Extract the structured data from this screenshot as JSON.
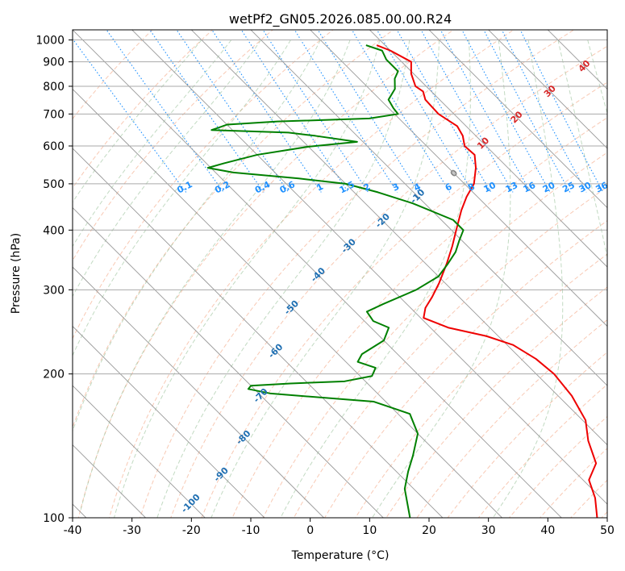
{
  "chart_data": {
    "type": "line",
    "title": "wetPf2_GN05.2026.085.00.00.R24",
    "xlabel": "Temperature (°C)",
    "ylabel": "Pressure (hPa)",
    "xlim": [
      -40,
      50
    ],
    "ylim": [
      1050,
      100
    ],
    "y_scale": "log",
    "skew_factor": 35,
    "grid": true,
    "x_ticks": [
      -40,
      -30,
      -20,
      -10,
      0,
      10,
      20,
      30,
      40,
      50
    ],
    "y_ticks": [
      1000,
      900,
      800,
      700,
      600,
      500,
      400,
      300,
      200,
      100
    ],
    "series": [
      {
        "name": "",
        "role": "temperature",
        "color": "#ee0000",
        "points": [
          [
            975,
            8.6
          ],
          [
            950,
            10.0
          ],
          [
            900,
            11.6
          ],
          [
            850,
            9.6
          ],
          [
            800,
            8.2
          ],
          [
            780,
            8.6
          ],
          [
            750,
            7.6
          ],
          [
            700,
            7.4
          ],
          [
            660,
            8.5
          ],
          [
            630,
            7.8
          ],
          [
            600,
            6.4
          ],
          [
            575,
            6.6
          ],
          [
            540,
            4.6
          ],
          [
            500,
            1.6
          ],
          [
            470,
            -1.8
          ],
          [
            440,
            -5.0
          ],
          [
            400,
            -9.2
          ],
          [
            370,
            -12.6
          ],
          [
            340,
            -16.5
          ],
          [
            310,
            -21.0
          ],
          [
            290,
            -24.5
          ],
          [
            275,
            -27.5
          ],
          [
            262,
            -29.5
          ],
          [
            250,
            -27.0
          ],
          [
            240,
            -22.0
          ],
          [
            230,
            -19.0
          ],
          [
            215,
            -17.5
          ],
          [
            200,
            -17.0
          ],
          [
            180,
            -17.7
          ],
          [
            160,
            -19.5
          ],
          [
            145,
            -22.5
          ],
          [
            130,
            -25.0
          ],
          [
            120,
            -29.0
          ],
          [
            110,
            -31.0
          ],
          [
            100,
            -34.0
          ]
        ]
      },
      {
        "name": "",
        "role": "dewpoint",
        "color": "#008000",
        "points": [
          [
            975,
            6.8
          ],
          [
            950,
            8.6
          ],
          [
            910,
            7.8
          ],
          [
            860,
            7.8
          ],
          [
            830,
            6.0
          ],
          [
            790,
            4.3
          ],
          [
            750,
            1.4
          ],
          [
            720,
            0.8
          ],
          [
            700,
            0.6
          ],
          [
            685,
            -5.0
          ],
          [
            675,
            -21.0
          ],
          [
            665,
            -30.0
          ],
          [
            655,
            -32.0
          ],
          [
            648,
            -33.5
          ],
          [
            640,
            -21.0
          ],
          [
            630,
            -17.0
          ],
          [
            612,
            -11.0
          ],
          [
            598,
            -20.0
          ],
          [
            575,
            -30.0
          ],
          [
            552,
            -37.0
          ],
          [
            540,
            -40.5
          ],
          [
            528,
            -37.0
          ],
          [
            513,
            -27.0
          ],
          [
            500,
            -20.0
          ],
          [
            480,
            -16.0
          ],
          [
            455,
            -12.0
          ],
          [
            420,
            -8.0
          ],
          [
            400,
            -8.0
          ],
          [
            380,
            -10.5
          ],
          [
            360,
            -13.0
          ],
          [
            340,
            -16.3
          ],
          [
            320,
            -20.0
          ],
          [
            300,
            -26.0
          ],
          [
            280,
            -34.0
          ],
          [
            270,
            -38.0
          ],
          [
            258,
            -38.5
          ],
          [
            250,
            -37.0
          ],
          [
            235,
            -40.0
          ],
          [
            220,
            -46.0
          ],
          [
            212,
            -48.0
          ],
          [
            206,
            -46.0
          ],
          [
            198,
            -48.0
          ],
          [
            193,
            -53.5
          ],
          [
            191,
            -63.0
          ],
          [
            189,
            -70.0
          ],
          [
            186,
            -71.0
          ],
          [
            182,
            -68.0
          ],
          [
            175,
            -52.0
          ],
          [
            165,
            -48.0
          ],
          [
            150,
            -50.0
          ],
          [
            135,
            -54.5
          ],
          [
            125,
            -58.0
          ],
          [
            115,
            -61.5
          ],
          [
            100,
            -65.5
          ]
        ]
      }
    ],
    "isotherm_labels": [
      {
        "text": "-100",
        "t": -100,
        "p": 107
      },
      {
        "text": "-90",
        "t": -90,
        "p": 123
      },
      {
        "text": "-80",
        "t": -80,
        "p": 147
      },
      {
        "text": "-70",
        "t": -70,
        "p": 180
      },
      {
        "text": "-60",
        "t": -60,
        "p": 223
      },
      {
        "text": "-50",
        "t": -50,
        "p": 275
      },
      {
        "text": "-40",
        "t": -40,
        "p": 322
      },
      {
        "text": "-30",
        "t": -30,
        "p": 370
      },
      {
        "text": "-20",
        "t": -20,
        "p": 418
      },
      {
        "text": "-10",
        "t": -10,
        "p": 470
      },
      {
        "text": "0",
        "t": 0,
        "p": 525
      },
      {
        "text": "10",
        "t": 10,
        "p": 607
      },
      {
        "text": "20",
        "t": 20,
        "p": 688
      },
      {
        "text": "30",
        "t": 30,
        "p": 780
      },
      {
        "text": "40",
        "t": 40,
        "p": 880
      }
    ],
    "mixing_ratio_labels": [
      "0.1",
      "0.2",
      "0.4",
      "0.6",
      "1",
      "1.5",
      "2",
      "3",
      "4",
      "6",
      "8",
      "10",
      "13",
      "16",
      "20",
      "25",
      "30",
      "36"
    ],
    "mixing_ratio_label_pressure": 480,
    "colors": {
      "temperature": "#ee0000",
      "dewpoint": "#008000",
      "isotherm_label_cold": "#1f6fb2",
      "isotherm_label_zero": "#888888",
      "isotherm_label_warm": "#d62728",
      "mixing_ratio": "#1e90ff",
      "dry_adiabat": "#f4a582",
      "moist_adiabat": "#8fbc8f",
      "isotherm": "#999999",
      "isobar": "#aaaaaa",
      "thermal_line": "#d2b48c"
    }
  }
}
